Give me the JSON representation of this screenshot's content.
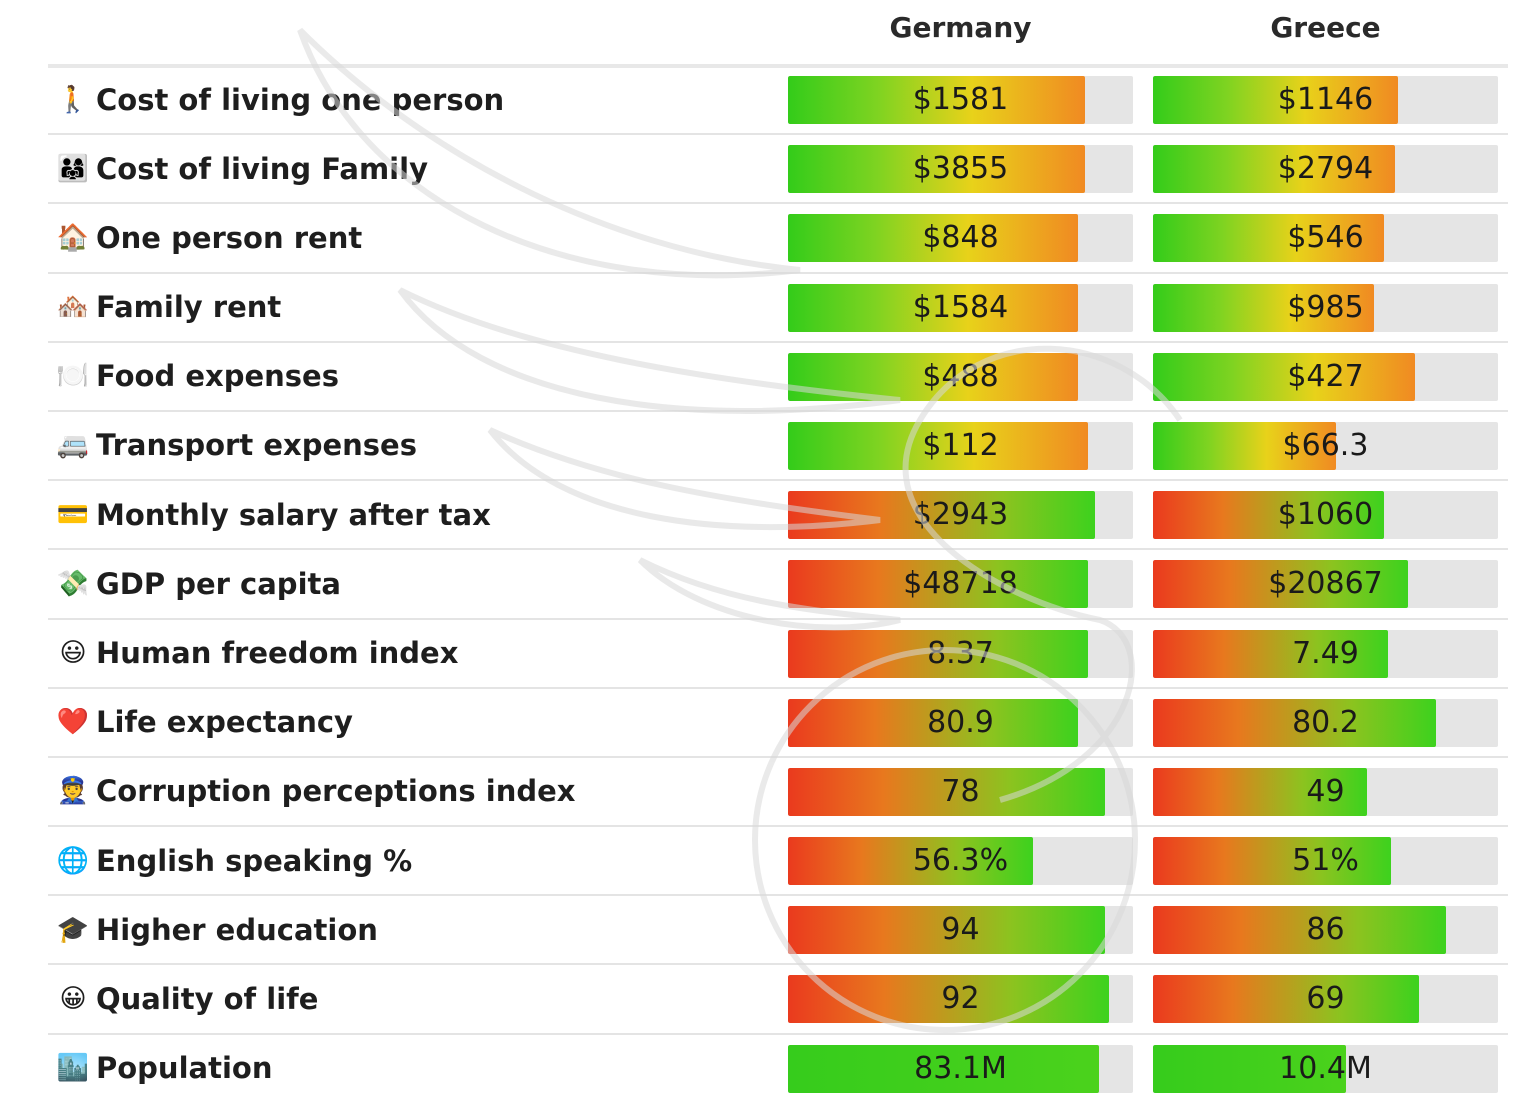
{
  "header": {
    "col1": "Germany",
    "col2": "Greece"
  },
  "rows": [
    {
      "icon": "🚶",
      "label": "Cost of living one person",
      "type": "cost",
      "v1": "$1581",
      "v2": "$1146",
      "p1": 0.86,
      "p2": 0.71
    },
    {
      "icon": "👨‍👩‍👧",
      "label": "Cost of living Family",
      "type": "cost",
      "v1": "$3855",
      "v2": "$2794",
      "p1": 0.86,
      "p2": 0.7
    },
    {
      "icon": "🏠",
      "label": "One person rent",
      "type": "cost",
      "v1": "$848",
      "v2": "$546",
      "p1": 0.84,
      "p2": 0.67
    },
    {
      "icon": "🏘️",
      "label": "Family rent",
      "type": "cost",
      "v1": "$1584",
      "v2": "$985",
      "p1": 0.84,
      "p2": 0.64
    },
    {
      "icon": "🍽️",
      "label": "Food expenses",
      "type": "cost",
      "v1": "$488",
      "v2": "$427",
      "p1": 0.84,
      "p2": 0.76
    },
    {
      "icon": "🚐",
      "label": "Transport expenses",
      "type": "cost",
      "v1": "$112",
      "v2": "$66.3",
      "p1": 0.87,
      "p2": 0.53
    },
    {
      "icon": "💳",
      "label": "Monthly salary after tax",
      "type": "good",
      "v1": "$2943",
      "v2": "$1060",
      "p1": 0.89,
      "p2": 0.67
    },
    {
      "icon": "💸",
      "label": "GDP per capita",
      "type": "good",
      "v1": "$48718",
      "v2": "$20867",
      "p1": 0.87,
      "p2": 0.74
    },
    {
      "icon": "😃",
      "label": "Human freedom index",
      "type": "good",
      "v1": "8.37",
      "v2": "7.49",
      "p1": 0.87,
      "p2": 0.68
    },
    {
      "icon": "❤️",
      "label": "Life expectancy",
      "type": "good",
      "v1": "80.9",
      "v2": "80.2",
      "p1": 0.84,
      "p2": 0.82
    },
    {
      "icon": "👮",
      "label": "Corruption perceptions index",
      "type": "good",
      "v1": "78",
      "v2": "49",
      "p1": 0.92,
      "p2": 0.62
    },
    {
      "icon": "🌐",
      "label": "English speaking %",
      "type": "good",
      "v1": "56.3%",
      "v2": "51%",
      "p1": 0.71,
      "p2": 0.69
    },
    {
      "icon": "🎓",
      "label": "Higher education",
      "type": "good",
      "v1": "94",
      "v2": "86",
      "p1": 0.92,
      "p2": 0.85
    },
    {
      "icon": "😀",
      "label": "Quality of life",
      "type": "good",
      "v1": "92",
      "v2": "69",
      "p1": 0.93,
      "p2": 0.77
    },
    {
      "icon": "🏙️",
      "label": "Population",
      "type": "pop",
      "v1": "83.1M",
      "v2": "10.4M",
      "p1": 0.9,
      "p2": 0.56
    }
  ]
}
